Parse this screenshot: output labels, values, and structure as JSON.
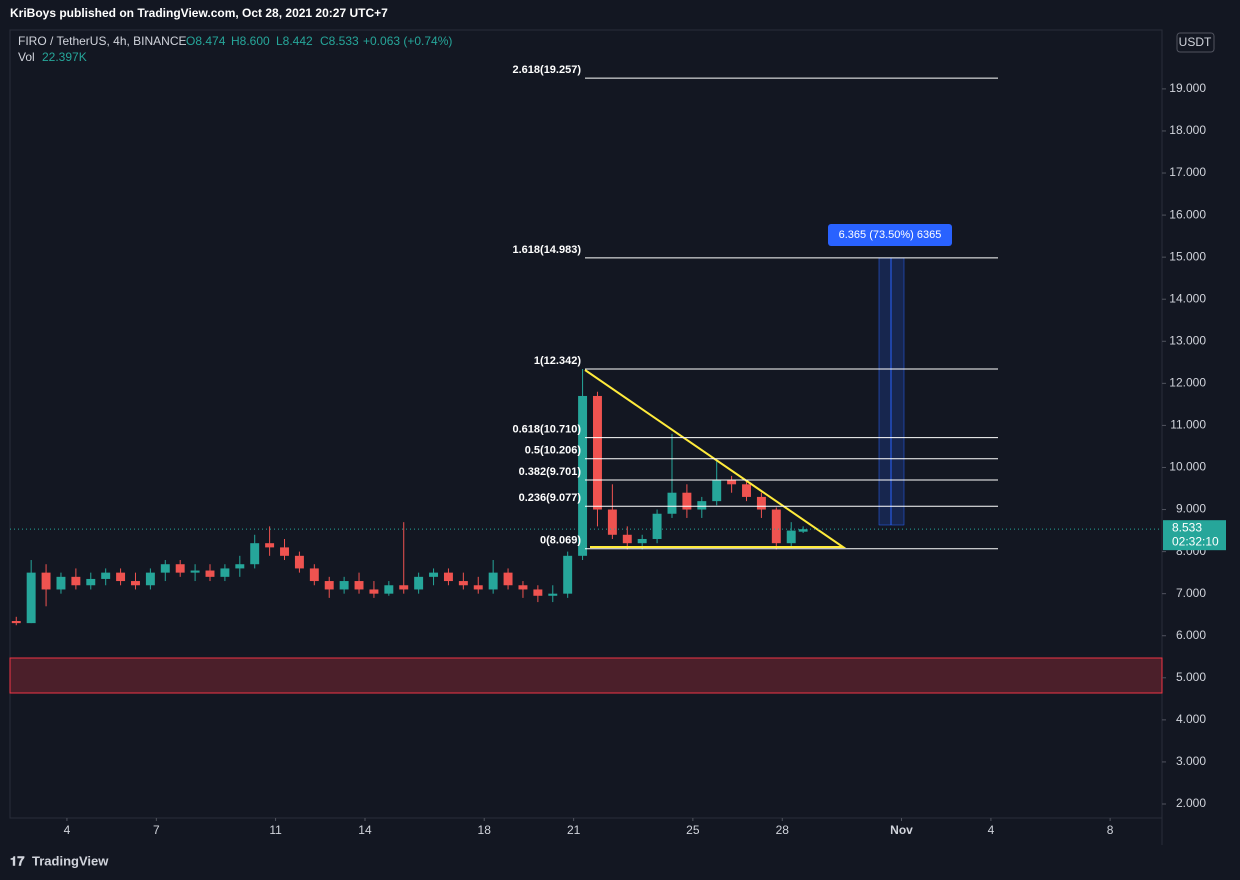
{
  "header": {
    "publisher": "KriBoys published on TradingView.com, Oct 28, 2021 20:27 UTC+7"
  },
  "footer": {
    "brand": "TradingView"
  },
  "chart_data": {
    "type": "candlestick",
    "symbol": "FIRO / TetherUS, 4h, BINANCE",
    "ohlc_legend": [
      "O8.474",
      "H8.600",
      "L8.442",
      "C8.533"
    ],
    "change": "+0.063 (+0.74%)",
    "volume_label": "Vol",
    "volume_value": "22.397K",
    "currency": "USDT",
    "up_color": "#26a69a",
    "down_color": "#ef5350",
    "grid": false,
    "x": [
      2.3,
      2.8,
      3.3,
      3.8,
      4.3,
      4.8,
      5.3,
      5.8,
      6.3,
      6.8,
      7.3,
      7.8,
      8.3,
      8.8,
      9.3,
      9.8,
      10.3,
      10.8,
      11.3,
      11.8,
      12.3,
      12.8,
      13.3,
      13.8,
      14.3,
      14.8,
      15.3,
      15.8,
      16.3,
      16.8,
      17.3,
      17.8,
      18.3,
      18.8,
      19.3,
      19.8,
      20.3,
      20.8,
      21.3,
      21.8,
      22.3,
      22.8,
      23.3,
      23.8,
      24.3,
      24.8,
      25.3,
      25.8,
      26.3,
      26.8,
      27.3,
      27.8,
      28.3,
      28.7
    ],
    "open": [
      6.35,
      6.3,
      7.5,
      7.1,
      7.4,
      7.2,
      7.35,
      7.5,
      7.3,
      7.2,
      7.5,
      7.7,
      7.5,
      7.55,
      7.4,
      7.6,
      7.7,
      8.2,
      8.1,
      7.9,
      7.6,
      7.3,
      7.1,
      7.3,
      7.1,
      7.0,
      7.2,
      7.1,
      7.4,
      7.5,
      7.3,
      7.2,
      7.1,
      7.5,
      7.2,
      7.1,
      6.95,
      7.0,
      7.9,
      11.7,
      9.0,
      8.4,
      8.2,
      8.3,
      8.9,
      9.4,
      9.0,
      9.2,
      9.7,
      9.6,
      9.3,
      9.0,
      8.2,
      8.474
    ],
    "high": [
      6.45,
      7.8,
      7.7,
      7.5,
      7.6,
      7.5,
      7.6,
      7.6,
      7.5,
      7.6,
      7.8,
      7.8,
      7.7,
      7.7,
      7.7,
      7.9,
      8.4,
      8.6,
      8.3,
      8.0,
      7.7,
      7.4,
      7.4,
      7.5,
      7.3,
      7.3,
      8.7,
      7.5,
      7.6,
      7.6,
      7.5,
      7.4,
      7.8,
      7.6,
      7.3,
      7.2,
      7.2,
      8.0,
      12.342,
      11.8,
      9.6,
      8.6,
      8.4,
      9.0,
      10.8,
      9.6,
      9.3,
      10.2,
      9.8,
      9.7,
      9.4,
      9.05,
      8.7,
      8.6
    ],
    "low": [
      6.25,
      6.3,
      6.7,
      7.0,
      7.1,
      7.1,
      7.2,
      7.2,
      7.1,
      7.1,
      7.3,
      7.4,
      7.3,
      7.3,
      7.3,
      7.4,
      7.6,
      7.9,
      7.8,
      7.5,
      7.2,
      6.9,
      7.0,
      7.0,
      6.9,
      6.95,
      7.0,
      7.0,
      7.2,
      7.2,
      7.1,
      7.0,
      7.0,
      7.1,
      6.9,
      6.8,
      6.8,
      6.9,
      7.8,
      8.6,
      8.3,
      8.05,
      8.05,
      8.2,
      8.8,
      8.8,
      8.8,
      9.1,
      9.4,
      9.2,
      8.8,
      8.05,
      8.1,
      8.442
    ],
    "close": [
      6.3,
      7.5,
      7.1,
      7.4,
      7.2,
      7.35,
      7.5,
      7.3,
      7.2,
      7.5,
      7.7,
      7.5,
      7.55,
      7.4,
      7.6,
      7.7,
      8.2,
      8.1,
      7.9,
      7.6,
      7.3,
      7.1,
      7.3,
      7.1,
      7.0,
      7.2,
      7.1,
      7.4,
      7.5,
      7.3,
      7.2,
      7.1,
      7.5,
      7.2,
      7.1,
      6.95,
      7.0,
      7.9,
      11.7,
      9.0,
      8.4,
      8.2,
      8.3,
      8.9,
      9.4,
      9.0,
      9.2,
      9.7,
      9.6,
      9.3,
      9.0,
      8.2,
      8.5,
      8.533
    ],
    "xlim": [
      2.09,
      40.74
    ],
    "xticks": [
      4,
      7,
      11,
      14,
      18,
      21,
      25,
      28,
      {
        "value": 32,
        "label": "Nov"
      },
      {
        "value": 35,
        "label": "4"
      },
      {
        "value": 39,
        "label": "8"
      }
    ],
    "ylim": [
      1.667,
      20.4
    ],
    "yticks": [
      {
        "value": 2,
        "label": "2.000"
      },
      {
        "value": 3,
        "label": "3.000"
      },
      {
        "value": 4,
        "label": "4.000"
      },
      {
        "value": 5,
        "label": "5.000"
      },
      {
        "value": 6,
        "label": "6.000"
      },
      {
        "value": 7,
        "label": "7.000"
      },
      {
        "value": 8,
        "label": "8.000"
      },
      {
        "value": 9,
        "label": "9.000"
      },
      {
        "value": 10,
        "label": "10.000"
      },
      {
        "value": 11,
        "label": "11.000"
      },
      {
        "value": 12,
        "label": "12.000"
      },
      {
        "value": 13,
        "label": "13.000"
      },
      {
        "value": 14,
        "label": "14.000"
      },
      {
        "value": 15,
        "label": "15.000"
      },
      {
        "value": 16,
        "label": "16.000"
      },
      {
        "value": 17,
        "label": "17.000"
      },
      {
        "value": 18,
        "label": "18.000"
      },
      {
        "value": 19,
        "label": "19.000"
      }
    ],
    "fib_levels": [
      {
        "label": "2.618(19.257)",
        "value": 19.257
      },
      {
        "label": "1.618(14.983)",
        "value": 14.983
      },
      {
        "label": "1(12.342)",
        "value": 12.342
      },
      {
        "label": "0.618(10.710)",
        "value": 10.71
      },
      {
        "label": "0.5(10.206)",
        "value": 10.206
      },
      {
        "label": "0.382(9.701)",
        "value": 9.701
      },
      {
        "label": "0.236(9.077)",
        "value": 9.077
      },
      {
        "label": "0(8.069)",
        "value": 8.069
      }
    ],
    "measure_label": "6.365 (73.50%) 6365",
    "last_price": 8.533,
    "countdown": "02:32:10"
  }
}
